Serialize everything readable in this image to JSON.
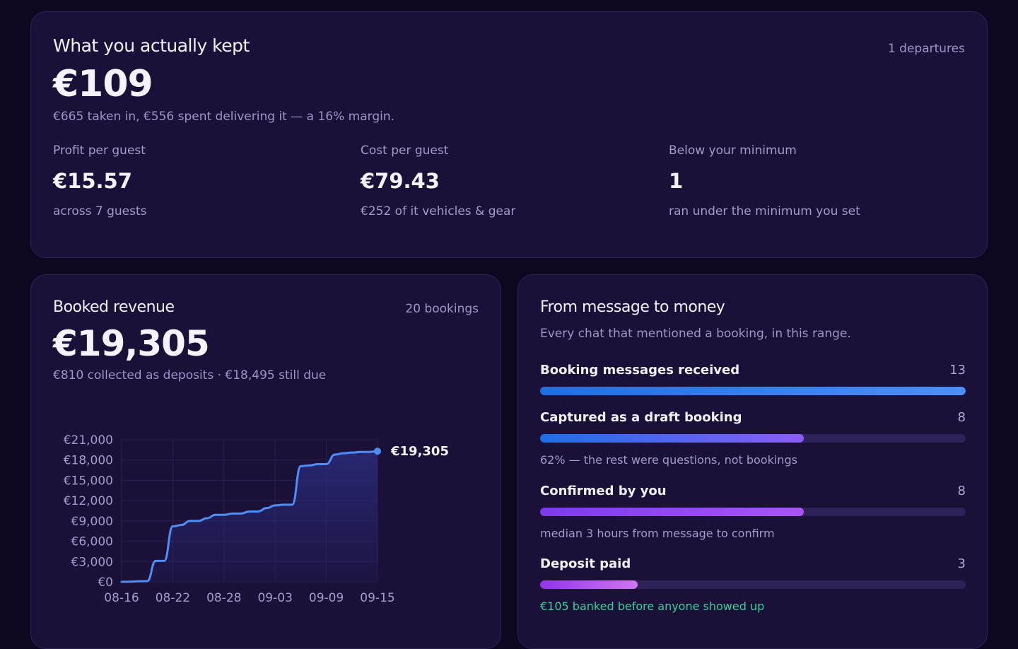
{
  "kept": {
    "title": "What you actually kept",
    "departures": "1 departures",
    "amount": "€109",
    "summary": "€665 taken in, €556 spent delivering it — a 16% margin.",
    "stats": [
      {
        "label": "Profit per guest",
        "value": "€15.57",
        "note": "across 7 guests"
      },
      {
        "label": "Cost per guest",
        "value": "€79.43",
        "note": "€252 of it vehicles & gear"
      },
      {
        "label": "Below your minimum",
        "value": "1",
        "note": "ran under the minimum you set"
      }
    ]
  },
  "revenue": {
    "title": "Booked revenue",
    "bookings": "20 bookings",
    "amount": "€19,305",
    "summary": "€810 collected as deposits · €18,495 still due"
  },
  "chart_data": {
    "type": "line",
    "title": "",
    "xlabel": "",
    "ylabel": "",
    "x_ticks": [
      "08-16",
      "08-22",
      "08-28",
      "09-03",
      "09-09",
      "09-15"
    ],
    "y_ticks": [
      "€0",
      "€3,000",
      "€6,000",
      "€9,000",
      "€12,000",
      "€15,000",
      "€18,000",
      "€21,000"
    ],
    "ylim": [
      0,
      21000
    ],
    "x": [
      "08-16",
      "08-19",
      "08-20",
      "08-21",
      "08-22",
      "08-23",
      "08-24",
      "08-25",
      "08-26",
      "08-27",
      "08-28",
      "08-29",
      "08-30",
      "08-31",
      "09-01",
      "09-02",
      "09-03",
      "09-04",
      "09-05",
      "09-06",
      "09-07",
      "09-08",
      "09-09",
      "09-10",
      "09-11",
      "09-12",
      "09-13",
      "09-14",
      "09-15"
    ],
    "series": [
      {
        "values": [
          0,
          100,
          3100,
          3100,
          8200,
          8400,
          9000,
          9000,
          9400,
          9900,
          9900,
          10100,
          10100,
          10400,
          10400,
          10900,
          11300,
          11400,
          11400,
          17100,
          17200,
          17400,
          17400,
          18800,
          19000,
          19100,
          19200,
          19200,
          19305
        ],
        "end_label": "€19,305"
      }
    ],
    "grid": true,
    "legend": "none",
    "colors": {
      "line": "#4f8ef7",
      "fill": "#2a2a78",
      "grid": "#2a2150",
      "tick": "#a49bcc",
      "label": "#f6f3ff"
    }
  },
  "funnel": {
    "title": "From message to money",
    "subtitle": "Every chat that mentioned a booking, in this range.",
    "stages": [
      {
        "name": "Booking messages received",
        "count": "13",
        "fraction": 1.0,
        "note": "",
        "note_tone": "muted",
        "color_from": "#1d6fe6",
        "color_to": "#4f8ef7"
      },
      {
        "name": "Captured as a draft booking",
        "count": "8",
        "fraction": 0.62,
        "note": "62% — the rest were questions, not bookings",
        "note_tone": "muted",
        "color_from": "#1d6fe6",
        "color_to": "#8b5cf6"
      },
      {
        "name": "Confirmed by you",
        "count": "8",
        "fraction": 0.62,
        "note": "median 3 hours from message to confirm",
        "note_tone": "muted",
        "color_from": "#7c3aed",
        "color_to": "#a855f7"
      },
      {
        "name": "Deposit paid",
        "count": "3",
        "fraction": 0.23,
        "note": "€105 banked before anyone showed up",
        "note_tone": "good",
        "color_from": "#9333ea",
        "color_to": "#d076f0"
      }
    ]
  }
}
